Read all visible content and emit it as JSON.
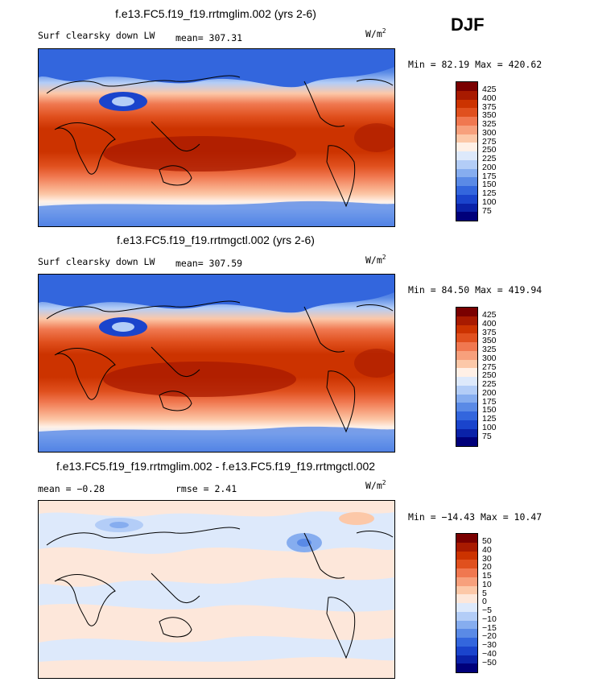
{
  "season": "DJF",
  "units_text": "W/m",
  "units_exp": "2",
  "panels": [
    {
      "title": "f.e13.FC5.f19_f19.rrtmglim.002 (yrs 2-6)",
      "field": "Surf clearsky down LW",
      "stat1": "mean= 307.31",
      "stat2": "",
      "minmax": "Min =  82.19 Max = 420.62"
    },
    {
      "title": "f.e13.FC5.f19_f19.rrtmgctl.002 (yrs 2-6)",
      "field": "Surf clearsky down LW",
      "stat1": "mean= 307.59",
      "stat2": "",
      "minmax": "Min =  84.50 Max = 419.94"
    },
    {
      "title": "f.e13.FC5.f19_f19.rrtmglim.002 - f.e13.FC5.f19_f19.rrtmgctl.002",
      "field": "",
      "stat1": "mean =  −0.28",
      "stat2": "rmse =   2.41",
      "minmax": "Min = −14.43 Max =  10.47"
    }
  ],
  "colorbars": {
    "absolute": {
      "labels": [
        "425",
        "400",
        "375",
        "350",
        "325",
        "300",
        "275",
        "250",
        "225",
        "200",
        "175",
        "150",
        "125",
        "100",
        "75"
      ],
      "colors": [
        "#7a0000",
        "#a81a00",
        "#cc3300",
        "#e0501e",
        "#f07850",
        "#f7a07c",
        "#fcc8a8",
        "#fff0e6",
        "#dde9fb",
        "#b3cdf7",
        "#86adef",
        "#5a8ae6",
        "#3366dd",
        "#1a44cc",
        "#0a22a8",
        "#00007a"
      ]
    },
    "difference": {
      "labels": [
        "50",
        "40",
        "30",
        "20",
        "15",
        "10",
        "5",
        "0",
        "−5",
        "−10",
        "−15",
        "−20",
        "−30",
        "−40",
        "−50"
      ],
      "colors": [
        "#7a0000",
        "#a81a00",
        "#cc3300",
        "#e0501e",
        "#f07850",
        "#f7a07c",
        "#fcc8a8",
        "#fde7da",
        "#dde9fb",
        "#b3cdf7",
        "#86adef",
        "#5a8ae6",
        "#3366dd",
        "#1a44cc",
        "#0a22a8",
        "#00007a"
      ]
    }
  },
  "chart_data": [
    {
      "type": "heatmap",
      "title": "f.e13.FC5.f19_f19.rrtmglim.002 (yrs 2-6)",
      "variable": "Surf clearsky down LW",
      "units": "W/m2",
      "mean": 307.31,
      "min": 82.19,
      "max": 420.62,
      "contour_levels": [
        75,
        100,
        125,
        150,
        175,
        200,
        225,
        250,
        275,
        300,
        325,
        350,
        375,
        400,
        425
      ]
    },
    {
      "type": "heatmap",
      "title": "f.e13.FC5.f19_f19.rrtmgctl.002 (yrs 2-6)",
      "variable": "Surf clearsky down LW",
      "units": "W/m2",
      "mean": 307.59,
      "min": 84.5,
      "max": 419.94,
      "contour_levels": [
        75,
        100,
        125,
        150,
        175,
        200,
        225,
        250,
        275,
        300,
        325,
        350,
        375,
        400,
        425
      ]
    },
    {
      "type": "heatmap",
      "title": "f.e13.FC5.f19_f19.rrtmglim.002 - f.e13.FC5.f19_f19.rrtmgctl.002",
      "units": "W/m2",
      "mean": -0.28,
      "rmse": 2.41,
      "min": -14.43,
      "max": 10.47,
      "contour_levels": [
        -50,
        -40,
        -30,
        -20,
        -15,
        -10,
        -5,
        0,
        5,
        10,
        15,
        20,
        30,
        40,
        50
      ]
    }
  ]
}
